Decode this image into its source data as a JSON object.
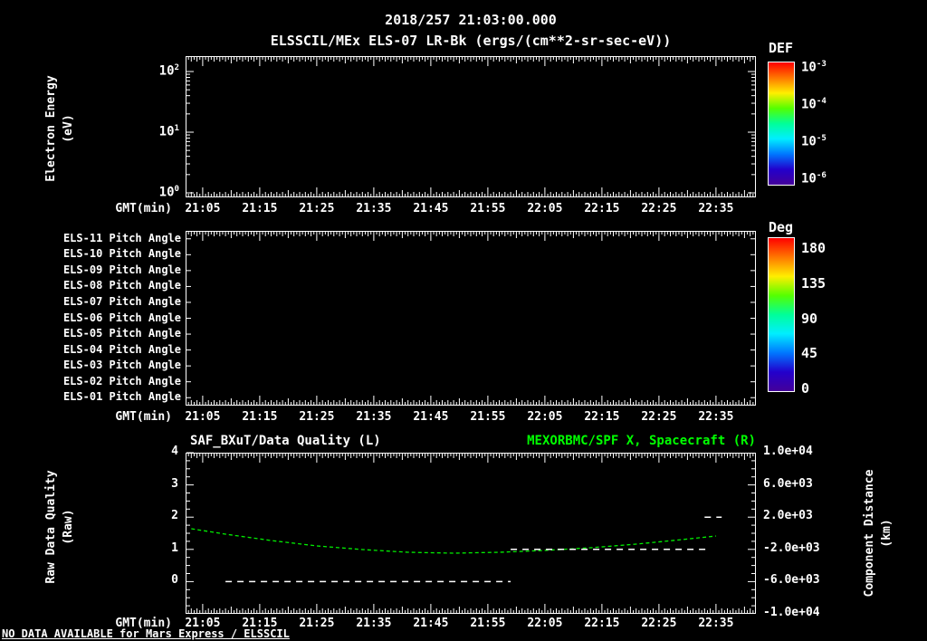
{
  "colors": {
    "background": "#000000",
    "foreground": "#ffffff",
    "accent_green": "#00ff00"
  },
  "header": {
    "timestamp": "2018/257 21:03:00.000"
  },
  "footer": {
    "message": "NO DATA AVAILABLE for Mars Express / ELSSCIL"
  },
  "chart_data": [
    {
      "type": "heatmap",
      "title": "ELSSCIL/MEx ELS-07 LR-Bk (ergs/(cm**2-sr-sec-eV))",
      "ylabel": "Electron Energy\n(eV)",
      "xlabel": "GMT(min)",
      "yscale": "log",
      "ylim": [
        "10^0",
        "10^2"
      ],
      "y_ticks": [
        "10^2",
        "10^1",
        "10^0"
      ],
      "x_ticks": [
        "21:05",
        "21:15",
        "21:25",
        "21:35",
        "21:45",
        "21:55",
        "22:05",
        "22:15",
        "22:25",
        "22:35"
      ],
      "x_tick_minutes": [
        65,
        75,
        85,
        95,
        105,
        115,
        125,
        135,
        145,
        155
      ],
      "x_range_minutes": [
        62,
        162
      ],
      "colorbar": {
        "title": "DEF",
        "ticks": [
          "10^-3",
          "10^-4",
          "10^-5",
          "10^-6"
        ],
        "colormap": [
          "#ff0000",
          "#ff7700",
          "#ffee00",
          "#55ff00",
          "#00ff99",
          "#00eeff",
          "#0077ff",
          "#2200cc",
          "#440099"
        ]
      },
      "values": []
    },
    {
      "type": "heatmap",
      "rows": [
        "ELS-11 Pitch Angle",
        "ELS-10 Pitch Angle",
        "ELS-09 Pitch Angle",
        "ELS-08 Pitch Angle",
        "ELS-07 Pitch Angle",
        "ELS-06 Pitch Angle",
        "ELS-05 Pitch Angle",
        "ELS-04 Pitch Angle",
        "ELS-03 Pitch Angle",
        "ELS-02 Pitch Angle",
        "ELS-01 Pitch Angle"
      ],
      "xlabel": "GMT(min)",
      "x_ticks": [
        "21:05",
        "21:15",
        "21:25",
        "21:35",
        "21:45",
        "21:55",
        "22:05",
        "22:15",
        "22:25",
        "22:35"
      ],
      "x_tick_minutes": [
        65,
        75,
        85,
        95,
        105,
        115,
        125,
        135,
        145,
        155
      ],
      "colorbar": {
        "title": "Deg",
        "ticks": [
          "180",
          "135",
          "90",
          "45",
          "0"
        ],
        "colormap": [
          "#ff0000",
          "#ff7700",
          "#ffee00",
          "#55ff00",
          "#00ff99",
          "#00eeff",
          "#0077ff",
          "#2200cc",
          "#440099"
        ]
      },
      "values": []
    },
    {
      "type": "line",
      "title_left": "SAF_BXuT/Data Quality (L)",
      "title_right": "MEXORBMC/SPF X, Spacecraft (R)",
      "ylabel_left": "Raw Data Quality\n(Raw)",
      "ylabel_right": "Component Distance\n(km)",
      "xlabel": "GMT(min)",
      "ylim_left": [
        -1,
        4
      ],
      "ylim_right": [
        -10000,
        10000
      ],
      "y_ticks_left": [
        "4",
        "3",
        "2",
        "1",
        "0"
      ],
      "y_ticks_right": [
        "1.0e+04",
        "6.0e+03",
        "2.0e+03",
        "-2.0e+03",
        "-6.0e+03",
        "-1.0e+04"
      ],
      "x_ticks": [
        "21:05",
        "21:15",
        "21:25",
        "21:35",
        "21:45",
        "21:55",
        "22:05",
        "22:15",
        "22:25",
        "22:35"
      ],
      "x_tick_minutes": [
        65,
        75,
        85,
        95,
        105,
        115,
        125,
        135,
        145,
        155
      ],
      "series": [
        {
          "name": "MEXORBMC/SPF X, Spacecraft",
          "axis": "right",
          "color": "#00ee00",
          "style": "dashed",
          "x_minutes": [
            63,
            69,
            77,
            85,
            93,
            101,
            109,
            117,
            125,
            133,
            141,
            149,
            155
          ],
          "y_km": [
            560,
            -110,
            -900,
            -1570,
            -2020,
            -2360,
            -2470,
            -2360,
            -2130,
            -1800,
            -1350,
            -790,
            -340
          ]
        },
        {
          "name": "SAF_BXuT/Data Quality",
          "axis": "left",
          "color": "#ffffff",
          "style": "dashed",
          "segments": [
            {
              "value": 0,
              "from_minute": 69,
              "to_minute": 119
            },
            {
              "value": 1,
              "from_minute": 119,
              "to_minute": 154
            },
            {
              "value": 2,
              "from_minute": 153,
              "to_minute": 156
            }
          ]
        }
      ]
    }
  ]
}
